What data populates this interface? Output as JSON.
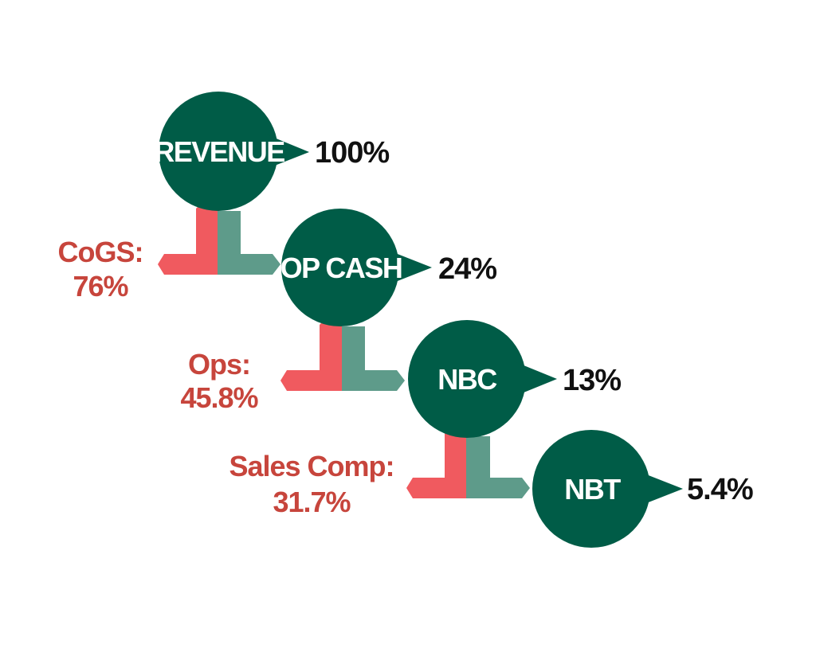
{
  "colors": {
    "node_fill": "#005c47",
    "cost_arrow": "#f05a5f",
    "flow_arrow": "#5e9b8a",
    "cost_text": "#c7453c",
    "pct_text": "#111111"
  },
  "nodes": [
    {
      "label": "REVENUE",
      "value": "100%"
    },
    {
      "label": "OP CASH",
      "value": "24%"
    },
    {
      "label": "NBC",
      "value": "13%"
    },
    {
      "label": "NBT",
      "value": "5.4%"
    }
  ],
  "costs": [
    {
      "name": "CoGS:",
      "value": "76%"
    },
    {
      "name": "Ops:",
      "value": "45.8%"
    },
    {
      "name": "Sales Comp:",
      "value": "31.7%"
    }
  ]
}
